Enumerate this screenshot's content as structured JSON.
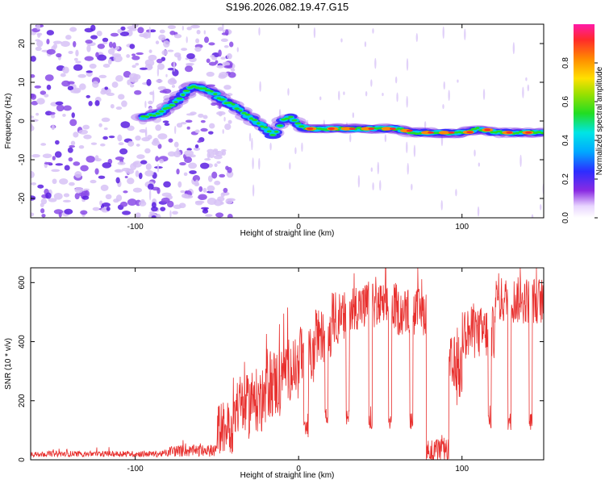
{
  "title": "S196.2026.082.19.47.G15",
  "chart_data": [
    {
      "type": "heatmap",
      "name": "spectrogram",
      "xlabel": "Height of straight line (km)",
      "ylabel": "Frequency (Hz)",
      "xlim": [
        -164,
        150
      ],
      "ylim": [
        -25,
        25
      ],
      "xticks": [
        -100,
        0,
        100
      ],
      "yticks": [
        -20,
        -10,
        0,
        10,
        20
      ],
      "colorbar": {
        "label": "Normalized spectral amplitude",
        "range": [
          0,
          1
        ],
        "ticks": [
          0.0,
          0.2,
          0.4,
          0.6,
          0.8
        ],
        "tick_labels": [
          "0.0",
          "0.2",
          "0.4",
          "0.6",
          "0.8"
        ]
      },
      "ridge": {
        "x": [
          -95,
          -85,
          -75,
          -65,
          -55,
          -45,
          -40,
          -30,
          -20,
          -15,
          -10,
          -5,
          0,
          5,
          10,
          20,
          30,
          40,
          50,
          60,
          70,
          80,
          90,
          100,
          110,
          120,
          130,
          140,
          150
        ],
        "y": [
          1,
          2,
          5,
          9,
          8,
          5,
          4,
          1,
          -2,
          -4,
          0,
          1,
          -1,
          -2,
          -2,
          -2,
          -2,
          -2,
          -2,
          -2,
          -3,
          -3,
          -3,
          -3,
          -2,
          -3,
          -3,
          -3,
          -3
        ]
      },
      "noise_region_x": [
        -164,
        -40
      ]
    },
    {
      "type": "line",
      "name": "snr",
      "xlabel": "Height of straight line (km)",
      "ylabel": "SNR (10 * v/v)",
      "xlim": [
        -164,
        150
      ],
      "ylim": [
        0,
        650
      ],
      "xticks": [
        -100,
        0,
        100
      ],
      "yticks": [
        0,
        200,
        400,
        600
      ],
      "color": "#e8302e",
      "segments": [
        {
          "x": [
            -164,
            -80
          ],
          "level": 20,
          "spread": 10
        },
        {
          "x": [
            -80,
            -50
          ],
          "level": 30,
          "spread": 20
        },
        {
          "x": [
            -50,
            -40
          ],
          "level": 110,
          "spread": 90
        },
        {
          "x": [
            -40,
            -30
          ],
          "level": 180,
          "spread": 110
        },
        {
          "x": [
            -30,
            -20
          ],
          "level": 200,
          "spread": 110
        },
        {
          "x": [
            -20,
            -10
          ],
          "level": 260,
          "spread": 120
        },
        {
          "x": [
            -10,
            0
          ],
          "level": 310,
          "spread": 110
        },
        {
          "x": [
            0,
            10
          ],
          "level": 350,
          "spread": 100
        },
        {
          "x": [
            10,
            20
          ],
          "level": 420,
          "spread": 90
        },
        {
          "x": [
            20,
            30
          ],
          "level": 480,
          "spread": 90
        },
        {
          "x": [
            30,
            60
          ],
          "level": 520,
          "spread": 80
        },
        {
          "x": [
            60,
            78
          ],
          "level": 500,
          "spread": 80
        },
        {
          "x": [
            78,
            92
          ],
          "level": 30,
          "spread": 40
        },
        {
          "x": [
            92,
            100
          ],
          "level": 300,
          "spread": 120
        },
        {
          "x": [
            100,
            120
          ],
          "level": 430,
          "spread": 90
        },
        {
          "x": [
            120,
            150
          ],
          "level": 540,
          "spread": 80
        }
      ],
      "dropouts": [
        {
          "x": [
            3,
            6
          ],
          "level": 100
        },
        {
          "x": [
            16,
            18
          ],
          "level": 140
        },
        {
          "x": [
            29,
            31
          ],
          "level": 140
        },
        {
          "x": [
            43,
            45
          ],
          "level": 130
        },
        {
          "x": [
            55,
            57
          ],
          "level": 130
        },
        {
          "x": [
            68,
            70
          ],
          "level": 130
        },
        {
          "x": [
            116,
            118
          ],
          "level": 130
        },
        {
          "x": [
            128,
            130
          ],
          "level": 130
        },
        {
          "x": [
            141,
            143
          ],
          "level": 130
        }
      ]
    }
  ]
}
